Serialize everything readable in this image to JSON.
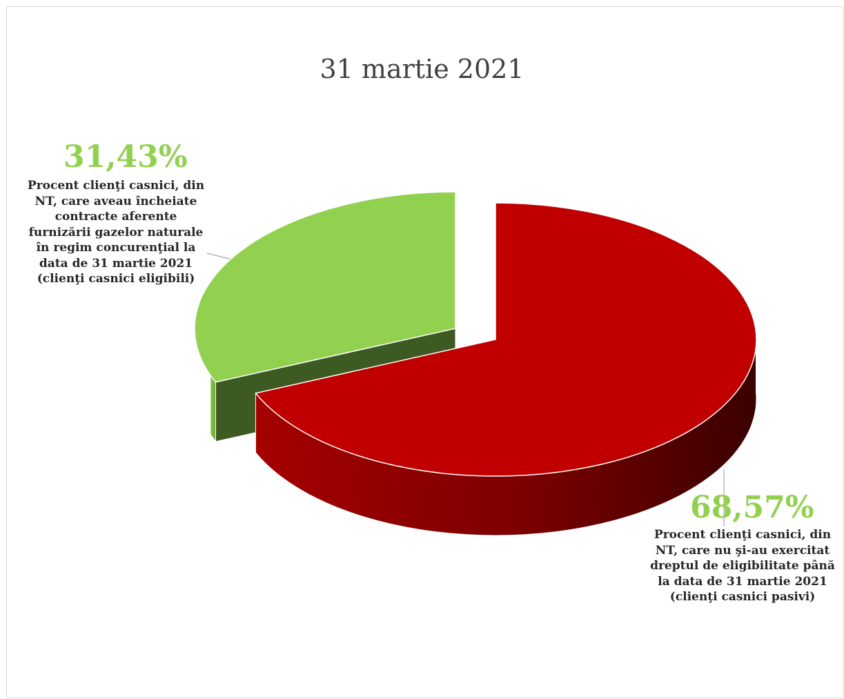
{
  "chart_data": {
    "type": "pie",
    "title": "31 martie 2021",
    "three_d": true,
    "slices": [
      {
        "value_label": "31,43%",
        "value": 31.43,
        "label_lines": [
          "Procent clienţi casnici, din",
          "NT, care aveau încheiate",
          "contracte aferente",
          "furnizării gazelor naturale",
          "în regim concurenţial  la",
          "data de 31 martie 2021",
          "(clienţi casnici eligibili)"
        ],
        "color": "#92d050",
        "side_color": "#3d5a22",
        "exploded": true
      },
      {
        "value_label": "68,57%",
        "value": 68.57,
        "label_lines": [
          "Procent clienţi casnici, din",
          "NT, care nu şi-au exercitat",
          "dreptul de eligibilitate până",
          "la data de 31 martie 2021",
          "(clienţi casnici pasivi)"
        ],
        "color": "#c00000",
        "side_color": "#8b0000",
        "exploded": false
      }
    ],
    "label_color": "#92d050",
    "legend": "none"
  }
}
